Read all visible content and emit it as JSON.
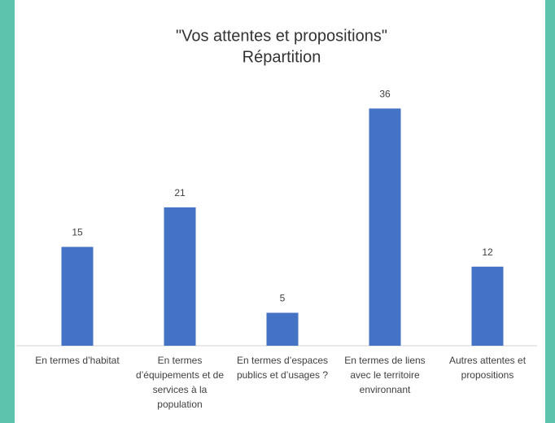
{
  "chart_data": {
    "type": "bar",
    "title": "\"Vos attentes et propositions\"",
    "subtitle": "Répartition",
    "categories": [
      "En termes d’habitat",
      "En termes d’équipements et de services à la population",
      "En termes d’espaces publics et d’usages ?",
      "En termes de liens avec le territoire environnant",
      "Autres attentes et propositions"
    ],
    "values": [
      15,
      21,
      5,
      36,
      12
    ],
    "color": "#4472c4",
    "ylim": [
      0,
      40
    ],
    "grid": false
  }
}
